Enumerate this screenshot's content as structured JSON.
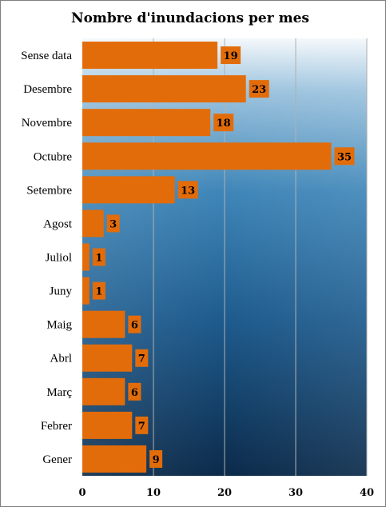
{
  "chart_data": {
    "type": "bar",
    "orientation": "horizontal",
    "title": "Nombre d'inundacions per mes",
    "categories": [
      "Sense data",
      "Desembre",
      "Novembre",
      "Octubre",
      "Setembre",
      "Agost",
      "Juliol",
      "Juny",
      "Maig",
      "Abrl",
      "Març",
      "Febrer",
      "Gener"
    ],
    "values": [
      19,
      23,
      18,
      35,
      13,
      3,
      1,
      1,
      6,
      7,
      6,
      7,
      9
    ],
    "data_labels": [
      "19",
      "23",
      "18",
      "35",
      "13",
      "3",
      "1",
      "1",
      "6",
      "7",
      "6",
      "7",
      "9"
    ],
    "xlabel": "",
    "ylabel": "",
    "xlim": [
      0,
      40
    ],
    "xticks": [
      "0",
      "10",
      "20",
      "30",
      "40"
    ],
    "grid": "vertical",
    "legend": "none",
    "colors": {
      "bar": "#e36c0a",
      "label_box": "#e36c0a",
      "gridline": "#b0b0b0",
      "plot_bg_top": "#e8f1f8",
      "plot_bg_bottom": "#0b2a4a"
    }
  }
}
